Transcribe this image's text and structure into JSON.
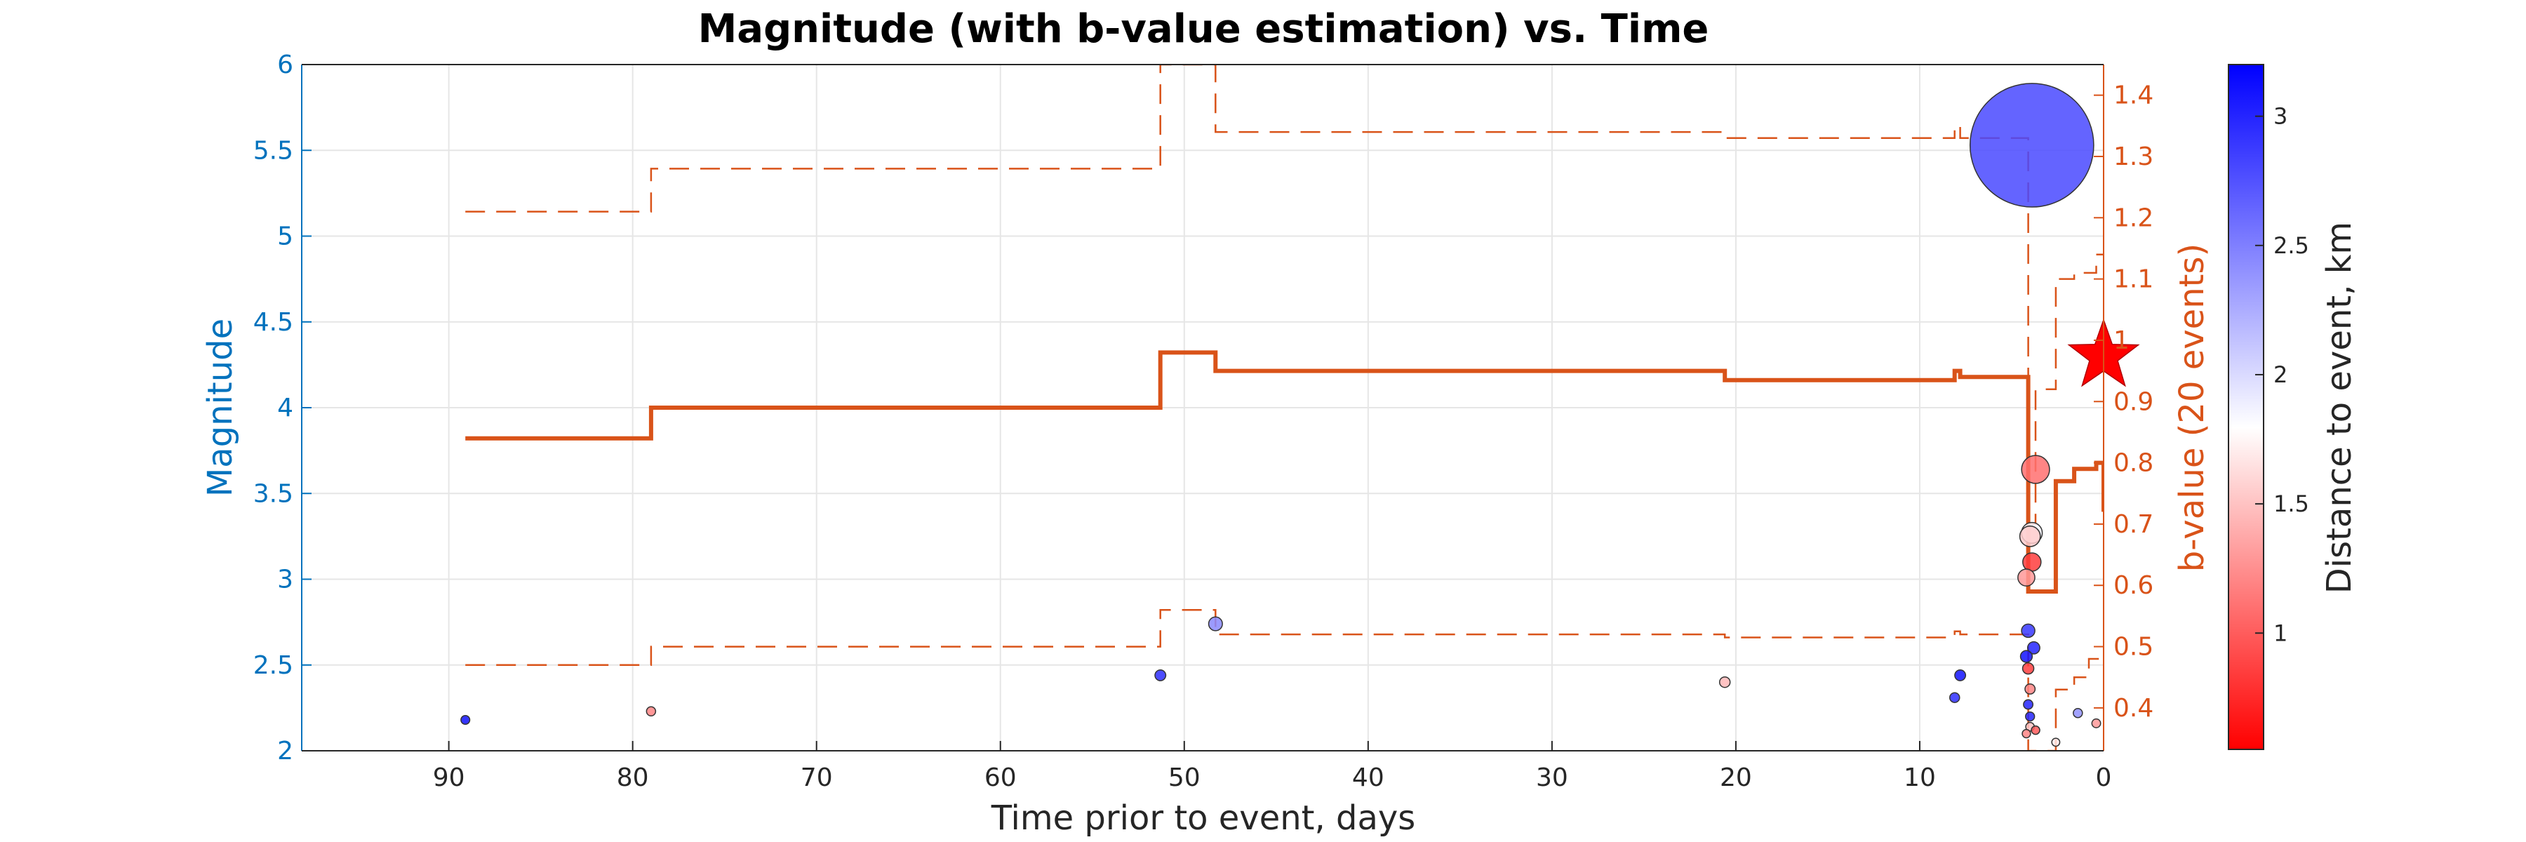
{
  "chart_data": {
    "type": "scatter",
    "title": "Magnitude (with b-value estimation) vs. Time",
    "xlabel": "Time prior to event, days",
    "ylabel_left": "Magnitude",
    "ylabel_right": "b-value (20 events)",
    "colorbar_label": "Distance to event, km",
    "xlim": [
      98,
      0
    ],
    "x_reversed": true,
    "ylim_left": [
      2,
      6
    ],
    "ylim_right": [
      0.33,
      1.45
    ],
    "x_ticks": [
      "90",
      "80",
      "70",
      "60",
      "50",
      "40",
      "30",
      "20",
      "10",
      "0"
    ],
    "y_left_ticks": [
      "2",
      "2.5",
      "3",
      "3.5",
      "4",
      "4.5",
      "5",
      "5.5",
      "6"
    ],
    "y_right_ticks": [
      "0.4",
      "0.5",
      "0.6",
      "0.7",
      "0.8",
      "0.9",
      "1",
      "1.1",
      "1.2",
      "1.3",
      "1.4"
    ],
    "colorbar_ticks": [
      "1",
      "1.5",
      "2",
      "2.5",
      "3"
    ],
    "colorbar_range": [
      0.55,
      3.2
    ],
    "grid": true,
    "colors": {
      "left_axis": "#0072BD",
      "right_axis": "#D95319",
      "near": "#ff0000",
      "mid": "#ffffff",
      "far": "#0000ff",
      "mainshock": "#ff0000"
    },
    "events": [
      {
        "t": 89.1,
        "mag": 2.18,
        "dist": 3.1
      },
      {
        "t": 79.0,
        "mag": 2.23,
        "dist": 1.2
      },
      {
        "t": 51.3,
        "mag": 2.44,
        "dist": 2.95
      },
      {
        "t": 48.3,
        "mag": 2.74,
        "dist": 2.45
      },
      {
        "t": 20.6,
        "mag": 2.4,
        "dist": 1.45
      },
      {
        "t": 8.1,
        "mag": 2.31,
        "dist": 2.95
      },
      {
        "t": 7.8,
        "mag": 2.44,
        "dist": 3.1
      },
      {
        "t": 3.9,
        "mag": 5.53,
        "dist": 2.8
      },
      {
        "t": 3.7,
        "mag": 3.64,
        "dist": 1.1
      },
      {
        "t": 3.9,
        "mag": 3.27,
        "dist": 1.85
      },
      {
        "t": 4.0,
        "mag": 3.25,
        "dist": 1.55
      },
      {
        "t": 3.9,
        "mag": 3.1,
        "dist": 0.85
      },
      {
        "t": 4.2,
        "mag": 3.01,
        "dist": 1.3
      },
      {
        "t": 4.1,
        "mag": 2.7,
        "dist": 2.9
      },
      {
        "t": 3.8,
        "mag": 2.6,
        "dist": 3.0
      },
      {
        "t": 4.2,
        "mag": 2.55,
        "dist": 3.1
      },
      {
        "t": 4.1,
        "mag": 2.48,
        "dist": 0.85
      },
      {
        "t": 4.0,
        "mag": 2.36,
        "dist": 1.2
      },
      {
        "t": 4.1,
        "mag": 2.27,
        "dist": 3.0
      },
      {
        "t": 4.0,
        "mag": 2.2,
        "dist": 3.0
      },
      {
        "t": 4.0,
        "mag": 2.14,
        "dist": 1.5
      },
      {
        "t": 3.7,
        "mag": 2.12,
        "dist": 1.0
      },
      {
        "t": 1.4,
        "mag": 2.22,
        "dist": 2.4
      },
      {
        "t": 0.4,
        "mag": 2.16,
        "dist": 1.3
      },
      {
        "t": 2.6,
        "mag": 2.05,
        "dist": 1.7
      },
      {
        "t": 4.2,
        "mag": 2.1,
        "dist": 1.2
      }
    ],
    "mainshock": {
      "t": 0,
      "mag": 4.3
    },
    "b_value": {
      "x": [
        89.1,
        79.0,
        79.0,
        51.3,
        51.3,
        48.3,
        48.3,
        20.6,
        20.6,
        8.1,
        8.1,
        7.8,
        7.8,
        4.1,
        4.1,
        3.7,
        3.7,
        2.6,
        2.6,
        1.6,
        1.6,
        0.8,
        0.8,
        0.4,
        0.4,
        0.0,
        0.0
      ],
      "y": [
        0.84,
        0.84,
        0.89,
        0.89,
        0.98,
        0.98,
        0.95,
        0.95,
        0.935,
        0.935,
        0.95,
        0.95,
        0.94,
        0.94,
        0.59,
        0.59,
        0.59,
        0.59,
        0.77,
        0.77,
        0.79,
        0.79,
        0.79,
        0.79,
        0.8,
        0.8,
        0.72
      ]
    },
    "b_upper": {
      "x": [
        89.1,
        79.0,
        79.0,
        51.3,
        51.3,
        48.3,
        48.3,
        20.6,
        20.6,
        8.1,
        8.1,
        7.8,
        7.8,
        4.1,
        4.1,
        3.7,
        3.7,
        2.6,
        2.6,
        1.6,
        1.6,
        0.4,
        0.4,
        0.0
      ],
      "y": [
        1.21,
        1.21,
        1.28,
        1.28,
        1.45,
        1.45,
        1.34,
        1.34,
        1.33,
        1.33,
        1.35,
        1.35,
        1.33,
        1.33,
        0.7,
        0.7,
        0.92,
        0.92,
        1.1,
        1.1,
        1.11,
        1.11,
        1.14,
        1.14
      ]
    },
    "b_lower": {
      "x": [
        89.1,
        79.0,
        79.0,
        51.3,
        51.3,
        48.3,
        48.3,
        20.6,
        20.6,
        8.1,
        8.1,
        7.8,
        7.8,
        4.1,
        4.1,
        3.7,
        3.7,
        2.6,
        2.6,
        1.6,
        1.6,
        0.8,
        0.8,
        0.0
      ],
      "y": [
        0.47,
        0.47,
        0.5,
        0.5,
        0.56,
        0.56,
        0.52,
        0.52,
        0.515,
        0.515,
        0.525,
        0.525,
        0.52,
        0.52,
        0.33,
        0.33,
        0.33,
        0.33,
        0.43,
        0.43,
        0.45,
        0.45,
        0.48,
        0.48
      ]
    }
  }
}
